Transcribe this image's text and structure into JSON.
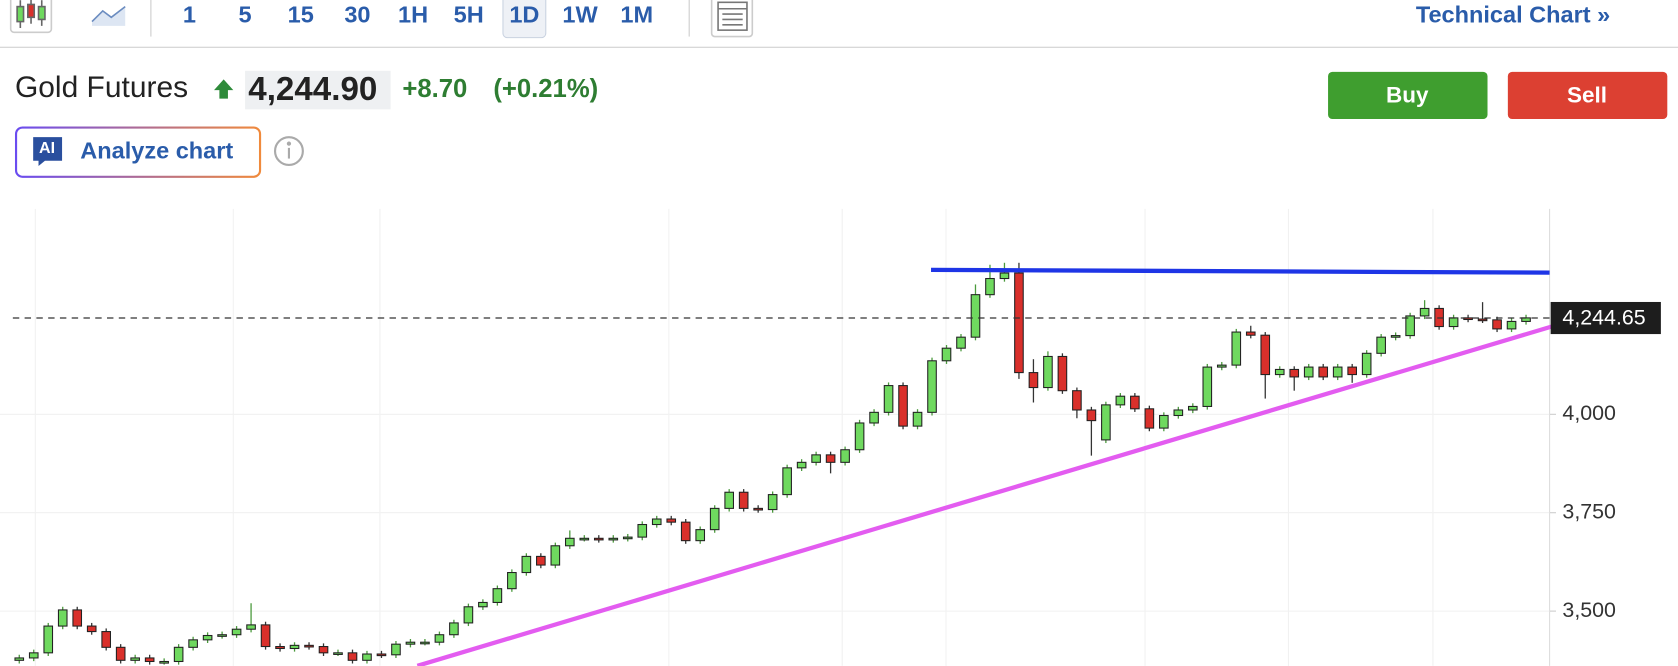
{
  "toolbar": {
    "intervals": [
      "1",
      "5",
      "15",
      "30",
      "1H",
      "5H",
      "1D",
      "1W",
      "1M"
    ],
    "selected_interval": "1D",
    "technical_chart": "Technical Chart »"
  },
  "header": {
    "name": "Gold Futures",
    "price": "4,244.90",
    "change": "+8.70",
    "change_pct": "(+0.21%)",
    "ai_badge": "AI",
    "analyze": "Analyze chart",
    "buy": "Buy",
    "sell": "Sell"
  },
  "chart_data": {
    "type": "candlestick",
    "open": [
      3375,
      3381,
      3394,
      3462,
      3503,
      3462,
      3448,
      3408,
      3375,
      3381,
      3372,
      3372,
      3408,
      3427,
      3438,
      3440,
      3454,
      3465,
      3410,
      3405,
      3413,
      3410,
      3394,
      3394,
      3375,
      3391,
      3389,
      3416,
      3421,
      3421,
      3440,
      3470,
      3511,
      3522,
      3557,
      3598,
      3639,
      3617,
      3666,
      3685,
      3685,
      3682,
      3685,
      3688,
      3720,
      3734,
      3726,
      3679,
      3707,
      3761,
      3802,
      3761,
      3758,
      3796,
      3864,
      3878,
      3897,
      3878,
      3910,
      3978,
      4005,
      4073,
      3970,
      4005,
      4136,
      4168,
      4196,
      4304,
      4345,
      4359,
      4106,
      4068,
      4147,
      4060,
      4011,
      3935,
      4024,
      4046,
      4014,
      3965,
      3997,
      4011,
      4020,
      4120,
      4125,
      4209,
      4201,
      4101,
      4114,
      4095,
      4120,
      4095,
      4120,
      4101,
      4155,
      4196,
      4200,
      4250,
      4269,
      4223,
      4245,
      4242,
      4240,
      4217,
      4236
    ],
    "high": [
      3389,
      3402,
      3470,
      3511,
      3511,
      3470,
      3456,
      3416,
      3389,
      3389,
      3380,
      3416,
      3435,
      3446,
      3448,
      3462,
      3520,
      3473,
      3418,
      3421,
      3421,
      3418,
      3402,
      3402,
      3399,
      3399,
      3424,
      3429,
      3429,
      3448,
      3478,
      3519,
      3530,
      3565,
      3606,
      3647,
      3647,
      3674,
      3705,
      3693,
      3693,
      3693,
      3696,
      3728,
      3742,
      3742,
      3734,
      3715,
      3769,
      3810,
      3810,
      3769,
      3804,
      3872,
      3886,
      3905,
      3905,
      3918,
      3986,
      4013,
      4081,
      4081,
      4013,
      4144,
      4176,
      4204,
      4330,
      4380,
      4385,
      4385,
      4140,
      4160,
      4155,
      4068,
      4019,
      4032,
      4054,
      4054,
      4022,
      4005,
      4019,
      4028,
      4128,
      4133,
      4217,
      4225,
      4209,
      4122,
      4122,
      4128,
      4128,
      4128,
      4128,
      4163,
      4204,
      4208,
      4258,
      4290,
      4277,
      4253,
      4253,
      4285,
      4248,
      4244,
      4253
    ],
    "low": [
      3367,
      3373,
      3386,
      3454,
      3454,
      3440,
      3400,
      3367,
      3367,
      3364,
      3364,
      3364,
      3400,
      3419,
      3430,
      3432,
      3446,
      3402,
      3397,
      3397,
      3402,
      3386,
      3386,
      3367,
      3367,
      3381,
      3381,
      3408,
      3413,
      3413,
      3432,
      3462,
      3503,
      3514,
      3549,
      3590,
      3609,
      3609,
      3658,
      3677,
      3674,
      3674,
      3677,
      3680,
      3712,
      3718,
      3671,
      3671,
      3699,
      3753,
      3753,
      3750,
      3750,
      3788,
      3856,
      3870,
      3850,
      3870,
      3902,
      3970,
      3997,
      3962,
      3962,
      3997,
      4128,
      4160,
      4188,
      4296,
      4337,
      4090,
      4030,
      4060,
      4052,
      3990,
      3895,
      3927,
      4016,
      4006,
      3957,
      3957,
      3989,
      4003,
      4012,
      4112,
      4117,
      4193,
      4040,
      4093,
      4060,
      4087,
      4087,
      4087,
      4080,
      4093,
      4147,
      4188,
      4192,
      4242,
      4215,
      4215,
      4234,
      4232,
      4209,
      4209,
      4228
    ],
    "close": [
      3381,
      3394,
      3462,
      3503,
      3462,
      3448,
      3408,
      3375,
      3381,
      3372,
      3372,
      3408,
      3427,
      3438,
      3440,
      3454,
      3465,
      3410,
      3405,
      3413,
      3410,
      3394,
      3394,
      3375,
      3391,
      3389,
      3416,
      3421,
      3421,
      3440,
      3470,
      3511,
      3522,
      3557,
      3598,
      3639,
      3617,
      3666,
      3685,
      3685,
      3682,
      3685,
      3688,
      3720,
      3734,
      3726,
      3679,
      3707,
      3761,
      3802,
      3761,
      3758,
      3796,
      3864,
      3878,
      3897,
      3878,
      3910,
      3978,
      4005,
      4073,
      3970,
      4005,
      4136,
      4168,
      4196,
      4304,
      4345,
      4359,
      4106,
      4068,
      4147,
      4060,
      4011,
      3984,
      4024,
      4046,
      4014,
      3965,
      3997,
      4011,
      4020,
      4120,
      4125,
      4209,
      4201,
      4101,
      4114,
      4095,
      4120,
      4095,
      4120,
      4101,
      4155,
      4196,
      4200,
      4250,
      4269,
      4223,
      4245,
      4242,
      4240,
      4217,
      4236,
      4245
    ],
    "up_color": "#6fd95f",
    "down_color": "#d9302b",
    "ylim": [
      3361,
      4522
    ],
    "yticks": [
      {
        "value": 3500,
        "label": "3,500"
      },
      {
        "value": 3750,
        "label": "3,750"
      },
      {
        "value": 4000,
        "label": "4,000"
      }
    ],
    "grid": true,
    "last_price": {
      "value": 4244.65,
      "label": "4,244.65"
    }
  }
}
